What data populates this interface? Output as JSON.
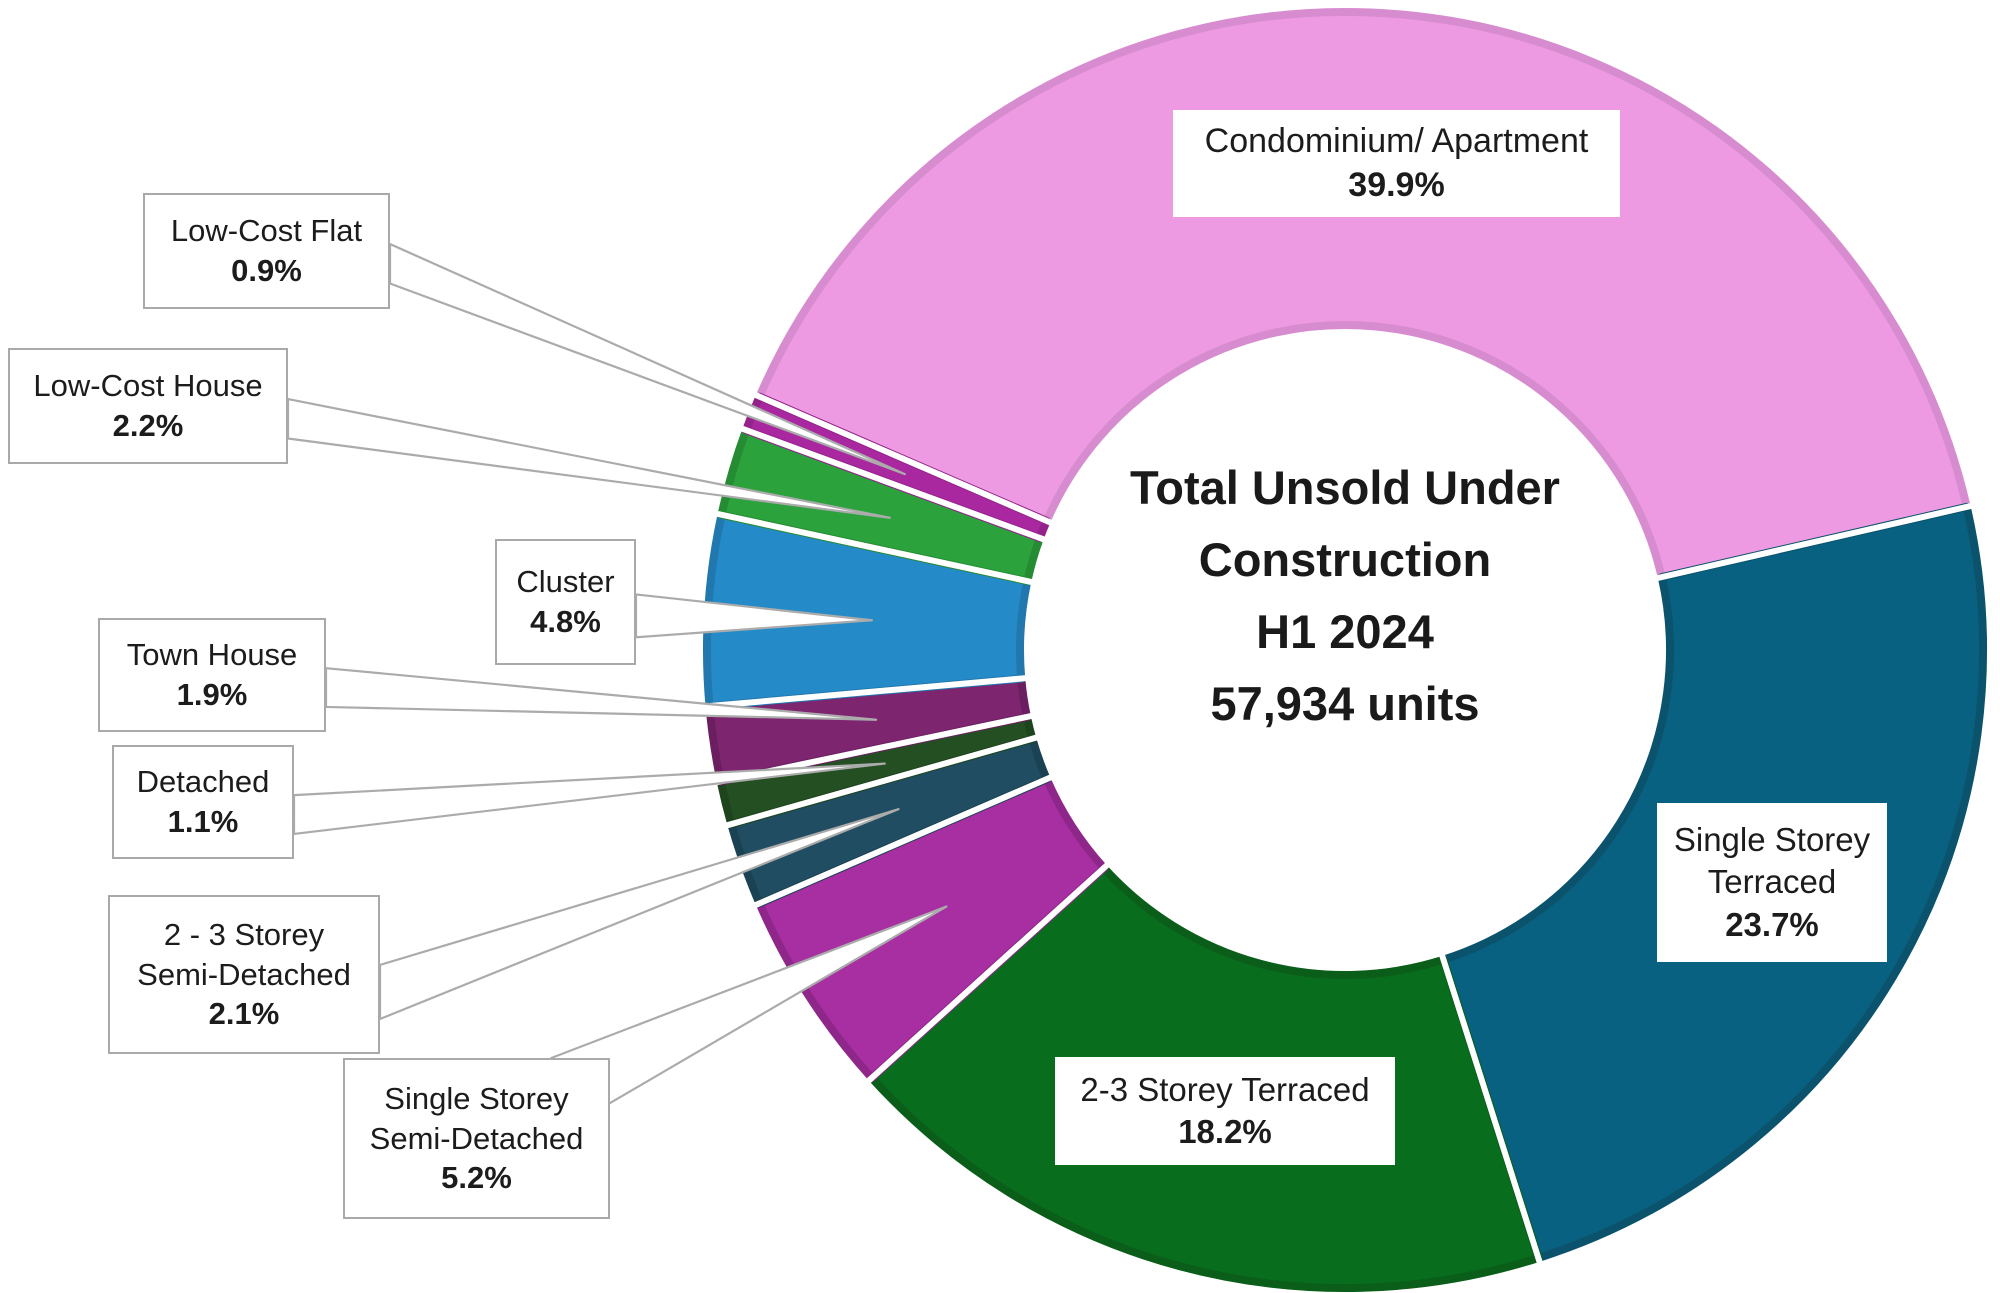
{
  "chart_data": {
    "type": "pie",
    "subtype": "donut",
    "title": "Total Unsold Under Construction H1 2024",
    "total_units_label": "57,934 units",
    "start_angle_deg": -66.6,
    "legend_position": "callout-labels",
    "grid": false,
    "center_text": {
      "line1": "Total Unsold Under",
      "line2": "Construction",
      "line3": "H1 2024",
      "line4": "57,934 units"
    },
    "segments": [
      {
        "label": "Condominium/ Apartment",
        "pct": 39.9,
        "pct_label": "39.9%",
        "lines": [
          "Condominium/ Apartment"
        ],
        "color": "#EE9AE2",
        "rim": "#D88CD0"
      },
      {
        "label": "Single Storey Terraced",
        "pct": 23.7,
        "pct_label": "23.7%",
        "lines": [
          "Single Storey",
          "Terraced"
        ],
        "color": "#086180",
        "rim": "#0B536D"
      },
      {
        "label": "2-3 Storey Terraced",
        "pct": 18.2,
        "pct_label": "18.2%",
        "lines": [
          "2-3 Storey Terraced"
        ],
        "color": "#086E1D",
        "rim": "#0A5E19"
      },
      {
        "label": "Single Storey Semi-Detached",
        "pct": 5.2,
        "pct_label": "5.2%",
        "lines": [
          "Single Storey",
          "Semi-Detached"
        ],
        "color": "#A72FA2",
        "rim": "#8F278B"
      },
      {
        "label": "2 - 3 Storey Semi-Detached",
        "pct": 2.1,
        "pct_label": "2.1%",
        "lines": [
          "2 - 3 Storey",
          "Semi-Detached"
        ],
        "color": "#204D61",
        "rim": "#1A4253"
      },
      {
        "label": "Detached",
        "pct": 1.1,
        "pct_label": "1.1%",
        "lines": [
          "Detached"
        ],
        "color": "#234F22",
        "rim": "#1E441D"
      },
      {
        "label": "Town House",
        "pct": 1.9,
        "pct_label": "1.9%",
        "lines": [
          "Town House"
        ],
        "color": "#7E2570",
        "rim": "#6C1F60"
      },
      {
        "label": "Cluster",
        "pct": 4.8,
        "pct_label": "4.8%",
        "lines": [
          "Cluster"
        ],
        "color": "#258BC8",
        "rim": "#2078AE"
      },
      {
        "label": "Low-Cost House",
        "pct": 2.2,
        "pct_label": "2.2%",
        "lines": [
          "Low-Cost House"
        ],
        "color": "#2BA23C",
        "rim": "#258C34"
      },
      {
        "label": "Low-Cost Flat",
        "pct": 0.9,
        "pct_label": "0.9%",
        "lines": [
          "Low-Cost Flat"
        ],
        "color": "#A928A0",
        "rim": "#93228B"
      }
    ],
    "callout_style": {
      "line_color": "#ababab",
      "fill": "#ffffff",
      "border_color": "#a9a9a9"
    }
  }
}
